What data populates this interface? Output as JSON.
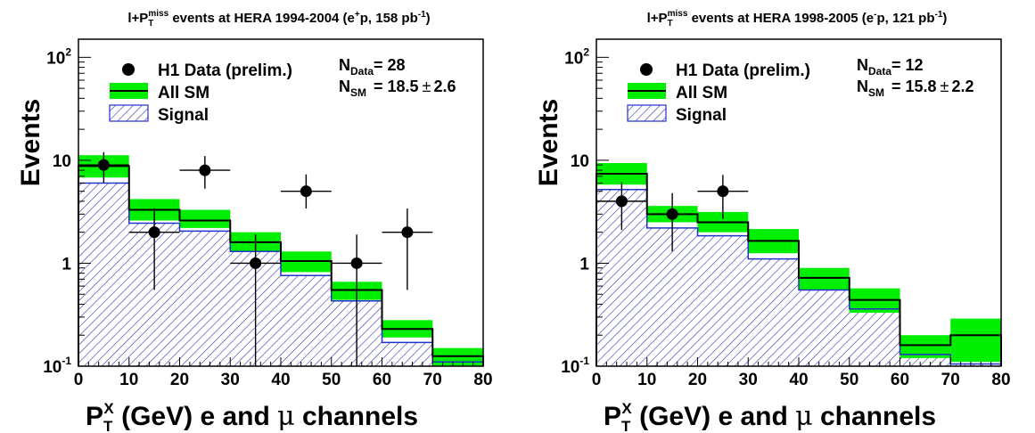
{
  "chart_data": [
    {
      "type": "histogram",
      "title": {
        "prefix": "l+P",
        "sub": "T",
        "sup": "miss",
        "main": " events at HERA 1994-2004 (e",
        "beam_sup": "+",
        "mid": "p, 158 pb",
        "lumi_sup": "-1",
        "end": ")"
      },
      "ylabel": "Events",
      "xlabel": {
        "p": "P",
        "sub": "T",
        "sup": "X",
        "unit": " (GeV)",
        "channels_pre": "e and ",
        "mu": "μ",
        "channels_post": " channels"
      },
      "yscale": "log",
      "ylim": [
        0.1,
        150
      ],
      "xlim": [
        0,
        80
      ],
      "x_ticks": [
        "0",
        "10",
        "20",
        "30",
        "40",
        "50",
        "60",
        "70",
        "80"
      ],
      "y_ticks": [
        {
          "value": 0.1,
          "base": "10",
          "exp": "-1"
        },
        {
          "value": 1,
          "base": "1",
          "exp": ""
        },
        {
          "value": 10,
          "base": "10",
          "exp": ""
        },
        {
          "value": 100,
          "base": "10",
          "exp": "2"
        }
      ],
      "bin_edges": [
        0,
        10,
        20,
        30,
        40,
        50,
        60,
        70,
        80
      ],
      "series": [
        {
          "name": "H1 Data (prelim.)",
          "kind": "points",
          "x": [
            5,
            15,
            25,
            35,
            45,
            55,
            65
          ],
          "y": [
            9,
            2,
            8,
            1,
            5,
            1,
            2
          ],
          "y_err_low": [
            6,
            0.55,
            5.3,
            0.1,
            3.4,
            0.1,
            0.55
          ],
          "y_err_high": [
            12,
            3.4,
            11,
            1.9,
            7.3,
            1.9,
            3.4
          ],
          "x_err": 5
        },
        {
          "name": "All SM",
          "kind": "step_band",
          "values": [
            8.8,
            3.3,
            2.6,
            1.6,
            1.05,
            0.55,
            0.23,
            0.125
          ],
          "band_low": [
            6.8,
            2.6,
            2.2,
            1.3,
            0.82,
            0.44,
            0.19,
            0.1
          ],
          "band_high": [
            11.2,
            4.2,
            3.3,
            2.0,
            1.3,
            0.66,
            0.28,
            0.15
          ]
        },
        {
          "name": "Signal",
          "kind": "hatched",
          "values": [
            6.0,
            2.45,
            2.05,
            1.3,
            0.76,
            0.43,
            0.17,
            0.11
          ]
        }
      ],
      "annotations": [
        {
          "n": "N",
          "sub": "Data",
          "text": "= 28"
        },
        {
          "n": "N",
          "sub": "SM",
          "text": "= 18.5",
          "pm": "±",
          "err": "2.6"
        }
      ],
      "legend_position": "top-left",
      "colors": {
        "band": "#00ee00",
        "hatch": "#3333aa",
        "line": "#000000",
        "signal_line": "#2233cc"
      }
    },
    {
      "type": "histogram",
      "title": {
        "prefix": "l+P",
        "sub": "T",
        "sup": "miss",
        "main": " events at HERA 1998-2005 (e",
        "beam_sup": "-",
        "mid": "p, 121 pb",
        "lumi_sup": "-1",
        "end": ")"
      },
      "ylabel": "Events",
      "xlabel": {
        "p": "P",
        "sub": "T",
        "sup": "X",
        "unit": " (GeV)",
        "channels_pre": "e and ",
        "mu": "μ",
        "channels_post": " channels"
      },
      "yscale": "log",
      "ylim": [
        0.1,
        150
      ],
      "xlim": [
        0,
        80
      ],
      "x_ticks": [
        "0",
        "10",
        "20",
        "30",
        "40",
        "50",
        "60",
        "70",
        "80"
      ],
      "y_ticks": [
        {
          "value": 0.1,
          "base": "10",
          "exp": "-1"
        },
        {
          "value": 1,
          "base": "1",
          "exp": ""
        },
        {
          "value": 10,
          "base": "10",
          "exp": ""
        },
        {
          "value": 100,
          "base": "10",
          "exp": "2"
        }
      ],
      "bin_edges": [
        0,
        10,
        20,
        30,
        40,
        50,
        60,
        70,
        80
      ],
      "series": [
        {
          "name": "H1 Data (prelim.)",
          "kind": "points",
          "x": [
            5,
            15,
            25
          ],
          "y": [
            4,
            3,
            5
          ],
          "y_err_low": [
            2.1,
            1.3,
            2.7
          ],
          "y_err_high": [
            6.1,
            4.8,
            7.2
          ],
          "x_err": 5
        },
        {
          "name": "All SM",
          "kind": "step_band",
          "values": [
            7.4,
            3.0,
            2.5,
            1.65,
            0.72,
            0.44,
            0.16,
            0.2
          ],
          "band_low": [
            5.8,
            2.5,
            2.0,
            1.25,
            0.55,
            0.33,
            0.12,
            0.11
          ],
          "band_high": [
            9.4,
            3.6,
            3.15,
            2.15,
            0.9,
            0.57,
            0.2,
            0.29
          ]
        },
        {
          "name": "Signal",
          "kind": "hatched",
          "values": [
            5.2,
            2.2,
            1.85,
            1.1,
            0.55,
            0.36,
            0.13,
            0.105
          ]
        }
      ],
      "annotations": [
        {
          "n": "N",
          "sub": "Data",
          "text": "= 12"
        },
        {
          "n": "N",
          "sub": "SM",
          "text": "= 15.8",
          "pm": "±",
          "err": "2.2"
        }
      ],
      "legend_position": "top-left",
      "colors": {
        "band": "#00ee00",
        "hatch": "#3333aa",
        "line": "#000000",
        "signal_line": "#2233cc"
      }
    }
  ]
}
